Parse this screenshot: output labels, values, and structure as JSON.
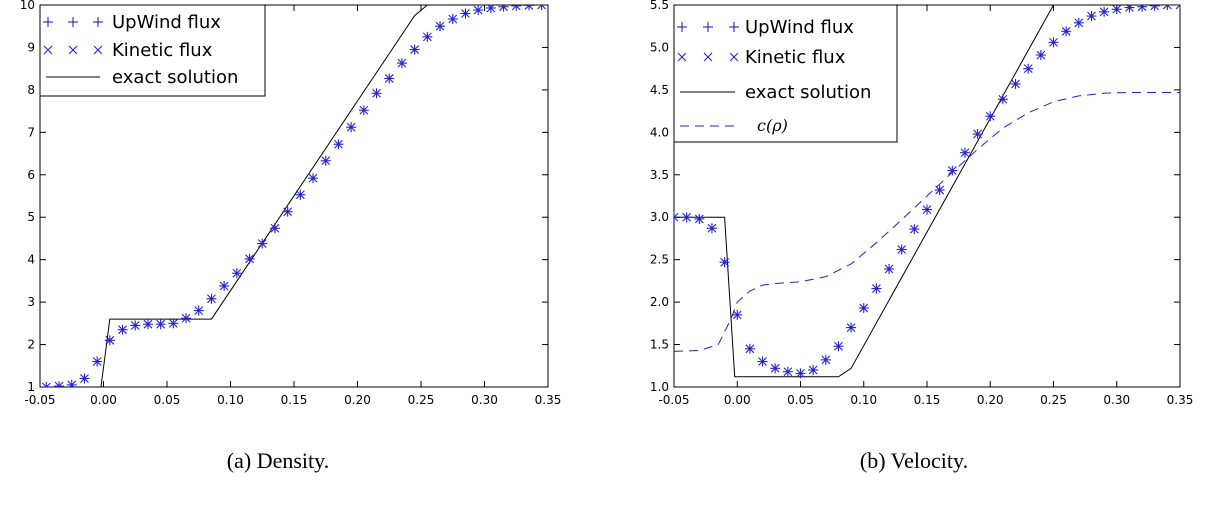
{
  "captions": [
    "(a) Density.",
    "(b) Velocity."
  ],
  "colors": {
    "markers": "#2323d2",
    "exact": "#000000",
    "dashed": "#2323d2"
  },
  "chart_data": [
    {
      "type": "line",
      "title": "",
      "xlabel": "",
      "ylabel": "",
      "xlim": [
        -0.05,
        0.35
      ],
      "ylim": [
        1,
        10
      ],
      "xticks": [
        -0.05,
        0.0,
        0.05,
        0.1,
        0.15,
        0.2,
        0.25,
        0.3,
        0.35
      ],
      "xtick_labels": [
        "-0.05",
        "0.00",
        "0.05",
        "0.10",
        "0.15",
        "0.20",
        "0.25",
        "0.30",
        "0.35"
      ],
      "yticks": [
        1,
        2,
        3,
        4,
        5,
        6,
        7,
        8,
        9,
        10
      ],
      "ytick_labels": [
        "1",
        "2",
        "3",
        "4",
        "5",
        "6",
        "7",
        "8",
        "9",
        "10"
      ],
      "grid": false,
      "legend_position": "top-left",
      "series": [
        {
          "name": "UpWind flux",
          "style": "plus",
          "x": [
            -0.045,
            -0.035,
            -0.025,
            -0.015,
            -0.005,
            0.005,
            0.015,
            0.025,
            0.035,
            0.045,
            0.055,
            0.065,
            0.075,
            0.085,
            0.095,
            0.105,
            0.115,
            0.125,
            0.135,
            0.145,
            0.155,
            0.165,
            0.175,
            0.185,
            0.195,
            0.205,
            0.215,
            0.225,
            0.235,
            0.245,
            0.255,
            0.265,
            0.275,
            0.285,
            0.295,
            0.305,
            0.315,
            0.325,
            0.335,
            0.345
          ],
          "y": [
            1.0,
            1.02,
            1.05,
            1.2,
            1.6,
            2.1,
            2.35,
            2.45,
            2.48,
            2.48,
            2.5,
            2.62,
            2.8,
            3.08,
            3.38,
            3.68,
            4.02,
            4.38,
            4.74,
            5.13,
            5.53,
            5.92,
            6.33,
            6.72,
            7.12,
            7.52,
            7.92,
            8.27,
            8.63,
            8.95,
            9.25,
            9.5,
            9.67,
            9.8,
            9.88,
            9.93,
            9.96,
            9.98,
            9.99,
            10.0
          ]
        },
        {
          "name": "Kinetic flux",
          "style": "cross",
          "x": [
            -0.045,
            -0.035,
            -0.025,
            -0.015,
            -0.005,
            0.005,
            0.015,
            0.025,
            0.035,
            0.045,
            0.055,
            0.065,
            0.075,
            0.085,
            0.095,
            0.105,
            0.115,
            0.125,
            0.135,
            0.145,
            0.155,
            0.165,
            0.175,
            0.185,
            0.195,
            0.205,
            0.215,
            0.225,
            0.235,
            0.245,
            0.255,
            0.265,
            0.275,
            0.285,
            0.295,
            0.305,
            0.315,
            0.325,
            0.335,
            0.345
          ],
          "y": [
            1.0,
            1.02,
            1.05,
            1.2,
            1.6,
            2.1,
            2.35,
            2.45,
            2.48,
            2.48,
            2.5,
            2.62,
            2.8,
            3.08,
            3.38,
            3.68,
            4.02,
            4.38,
            4.74,
            5.13,
            5.53,
            5.92,
            6.33,
            6.72,
            7.12,
            7.52,
            7.92,
            8.27,
            8.63,
            8.95,
            9.25,
            9.5,
            9.67,
            9.8,
            9.88,
            9.93,
            9.96,
            9.98,
            9.99,
            10.0
          ]
        },
        {
          "name": "exact solution",
          "style": "solid",
          "x": [
            -0.05,
            -0.002,
            0.005,
            0.085,
            0.245,
            0.255,
            0.35
          ],
          "y": [
            1.0,
            1.0,
            2.6,
            2.6,
            9.75,
            10.0,
            10.0
          ]
        }
      ]
    },
    {
      "type": "line",
      "title": "",
      "xlabel": "",
      "ylabel": "",
      "xlim": [
        -0.05,
        0.35
      ],
      "ylim": [
        1.0,
        5.5
      ],
      "xticks": [
        -0.05,
        0.0,
        0.05,
        0.1,
        0.15,
        0.2,
        0.25,
        0.3,
        0.35
      ],
      "xtick_labels": [
        "-0.05",
        "0.00",
        "0.05",
        "0.10",
        "0.15",
        "0.20",
        "0.25",
        "0.30",
        "0.35"
      ],
      "yticks": [
        1.0,
        1.5,
        2.0,
        2.5,
        3.0,
        3.5,
        4.0,
        4.5,
        5.0,
        5.5
      ],
      "ytick_labels": [
        "1.0",
        "1.5",
        "2.0",
        "2.5",
        "3.0",
        "3.5",
        "4.0",
        "4.5",
        "5.0",
        "5.5"
      ],
      "grid": false,
      "legend_position": "top-left",
      "series": [
        {
          "name": "UpWind flux",
          "style": "plus",
          "x": [
            -0.05,
            -0.04,
            -0.03,
            -0.02,
            -0.01,
            0.0,
            0.01,
            0.02,
            0.03,
            0.04,
            0.05,
            0.06,
            0.07,
            0.08,
            0.09,
            0.1,
            0.11,
            0.12,
            0.13,
            0.14,
            0.15,
            0.16,
            0.17,
            0.18,
            0.19,
            0.2,
            0.21,
            0.22,
            0.23,
            0.24,
            0.25,
            0.26,
            0.27,
            0.28,
            0.29,
            0.3,
            0.31,
            0.32,
            0.33,
            0.34,
            0.35
          ],
          "y": [
            3.0,
            3.0,
            2.98,
            2.87,
            2.47,
            1.85,
            1.45,
            1.3,
            1.22,
            1.18,
            1.16,
            1.2,
            1.32,
            1.48,
            1.7,
            1.93,
            2.16,
            2.39,
            2.62,
            2.86,
            3.09,
            3.32,
            3.55,
            3.76,
            3.98,
            4.19,
            4.39,
            4.57,
            4.75,
            4.91,
            5.06,
            5.19,
            5.29,
            5.37,
            5.42,
            5.45,
            5.47,
            5.48,
            5.49,
            5.5,
            5.5
          ]
        },
        {
          "name": "Kinetic flux",
          "style": "cross",
          "x": [
            -0.05,
            -0.04,
            -0.03,
            -0.02,
            -0.01,
            0.0,
            0.01,
            0.02,
            0.03,
            0.04,
            0.05,
            0.06,
            0.07,
            0.08,
            0.09,
            0.1,
            0.11,
            0.12,
            0.13,
            0.14,
            0.15,
            0.16,
            0.17,
            0.18,
            0.19,
            0.2,
            0.21,
            0.22,
            0.23,
            0.24,
            0.25,
            0.26,
            0.27,
            0.28,
            0.29,
            0.3,
            0.31,
            0.32,
            0.33,
            0.34,
            0.35
          ],
          "y": [
            3.0,
            3.0,
            2.98,
            2.87,
            2.47,
            1.85,
            1.45,
            1.3,
            1.22,
            1.18,
            1.16,
            1.2,
            1.32,
            1.48,
            1.7,
            1.93,
            2.16,
            2.39,
            2.62,
            2.86,
            3.09,
            3.32,
            3.55,
            3.76,
            3.98,
            4.19,
            4.39,
            4.57,
            4.75,
            4.91,
            5.06,
            5.19,
            5.29,
            5.37,
            5.42,
            5.45,
            5.47,
            5.48,
            5.49,
            5.5,
            5.5
          ]
        },
        {
          "name": "exact solution",
          "style": "solid",
          "x": [
            -0.05,
            -0.01,
            -0.002,
            0.08,
            0.09,
            0.25,
            0.35
          ],
          "y": [
            3.0,
            3.0,
            1.12,
            1.12,
            1.22,
            5.5,
            5.5
          ]
        },
        {
          "name": "c(ρ)",
          "style": "dashed",
          "x": [
            -0.05,
            -0.03,
            -0.015,
            -0.005,
            0.0,
            0.01,
            0.02,
            0.03,
            0.05,
            0.07,
            0.09,
            0.11,
            0.13,
            0.15,
            0.17,
            0.19,
            0.21,
            0.23,
            0.25,
            0.27,
            0.29,
            0.31,
            0.33,
            0.35
          ],
          "y": [
            1.42,
            1.43,
            1.5,
            1.8,
            2.0,
            2.13,
            2.2,
            2.22,
            2.24,
            2.3,
            2.45,
            2.7,
            2.97,
            3.25,
            3.53,
            3.8,
            4.05,
            4.23,
            4.36,
            4.43,
            4.46,
            4.47,
            4.47,
            4.47
          ]
        }
      ]
    }
  ]
}
